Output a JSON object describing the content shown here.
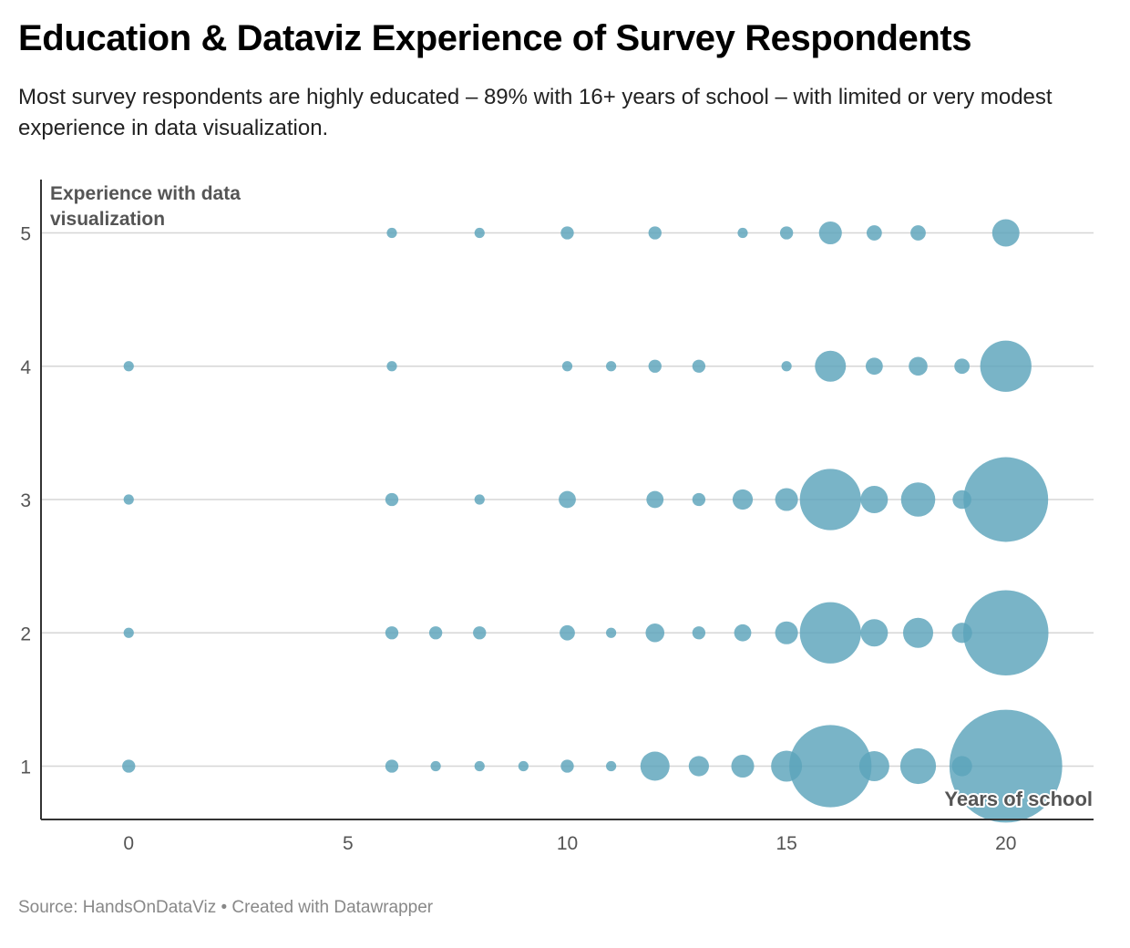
{
  "header": {
    "title": "Education & Dataviz Experience of Survey Respondents",
    "subtitle": "Most survey respondents are highly educated – 89% with 16+ years of school – with limited or very modest experience in data visualization."
  },
  "footer": {
    "source": "Source: HandsOnDataViz • Created with Datawrapper"
  },
  "chart_data": {
    "type": "scatter",
    "variant": "bubble",
    "title": "Education & Dataviz Experience of Survey Respondents",
    "xlabel": "Years of school",
    "ylabel_lines": [
      "Experience with data",
      "visualization"
    ],
    "xlim": [
      -2,
      22
    ],
    "ylim": [
      0.6,
      5.4
    ],
    "xticks": [
      "0",
      "5",
      "10",
      "15",
      "20"
    ],
    "yticks": [
      "1",
      "2",
      "3",
      "4",
      "5"
    ],
    "grid": true,
    "bubble_color": "#5ba3bb",
    "bubble_opacity": 0.82,
    "size_encoding": "relative count of respondents (estimated)",
    "points": [
      {
        "x": 6,
        "y": 5,
        "size": 1
      },
      {
        "x": 8,
        "y": 5,
        "size": 1
      },
      {
        "x": 10,
        "y": 5,
        "size": 2
      },
      {
        "x": 12,
        "y": 5,
        "size": 2
      },
      {
        "x": 14,
        "y": 5,
        "size": 1
      },
      {
        "x": 15,
        "y": 5,
        "size": 2
      },
      {
        "x": 16,
        "y": 5,
        "size": 8
      },
      {
        "x": 17,
        "y": 5,
        "size": 3
      },
      {
        "x": 18,
        "y": 5,
        "size": 3
      },
      {
        "x": 20,
        "y": 5,
        "size": 12
      },
      {
        "x": 0,
        "y": 4,
        "size": 1
      },
      {
        "x": 6,
        "y": 4,
        "size": 1
      },
      {
        "x": 10,
        "y": 4,
        "size": 1
      },
      {
        "x": 11,
        "y": 4,
        "size": 1
      },
      {
        "x": 12,
        "y": 4,
        "size": 2
      },
      {
        "x": 13,
        "y": 4,
        "size": 2
      },
      {
        "x": 15,
        "y": 4,
        "size": 1
      },
      {
        "x": 16,
        "y": 4,
        "size": 16
      },
      {
        "x": 17,
        "y": 4,
        "size": 4
      },
      {
        "x": 18,
        "y": 4,
        "size": 5
      },
      {
        "x": 19,
        "y": 4,
        "size": 3
      },
      {
        "x": 20,
        "y": 4,
        "size": 48
      },
      {
        "x": 0,
        "y": 3,
        "size": 1
      },
      {
        "x": 6,
        "y": 3,
        "size": 2
      },
      {
        "x": 8,
        "y": 3,
        "size": 1
      },
      {
        "x": 10,
        "y": 3,
        "size": 4
      },
      {
        "x": 12,
        "y": 3,
        "size": 4
      },
      {
        "x": 13,
        "y": 3,
        "size": 2
      },
      {
        "x": 14,
        "y": 3,
        "size": 6
      },
      {
        "x": 15,
        "y": 3,
        "size": 8
      },
      {
        "x": 16,
        "y": 3,
        "size": 70
      },
      {
        "x": 17,
        "y": 3,
        "size": 12
      },
      {
        "x": 18,
        "y": 3,
        "size": 20
      },
      {
        "x": 19,
        "y": 3,
        "size": 5
      },
      {
        "x": 20,
        "y": 3,
        "size": 138
      },
      {
        "x": 0,
        "y": 2,
        "size": 1
      },
      {
        "x": 6,
        "y": 2,
        "size": 2
      },
      {
        "x": 7,
        "y": 2,
        "size": 2
      },
      {
        "x": 8,
        "y": 2,
        "size": 2
      },
      {
        "x": 10,
        "y": 2,
        "size": 3
      },
      {
        "x": 11,
        "y": 2,
        "size": 1
      },
      {
        "x": 12,
        "y": 2,
        "size": 5
      },
      {
        "x": 13,
        "y": 2,
        "size": 2
      },
      {
        "x": 14,
        "y": 2,
        "size": 4
      },
      {
        "x": 15,
        "y": 2,
        "size": 8
      },
      {
        "x": 16,
        "y": 2,
        "size": 70
      },
      {
        "x": 17,
        "y": 2,
        "size": 12
      },
      {
        "x": 18,
        "y": 2,
        "size": 15
      },
      {
        "x": 19,
        "y": 2,
        "size": 6
      },
      {
        "x": 20,
        "y": 2,
        "size": 140
      },
      {
        "x": 0,
        "y": 1,
        "size": 2
      },
      {
        "x": 6,
        "y": 1,
        "size": 2
      },
      {
        "x": 7,
        "y": 1,
        "size": 1
      },
      {
        "x": 8,
        "y": 1,
        "size": 1
      },
      {
        "x": 9,
        "y": 1,
        "size": 1
      },
      {
        "x": 10,
        "y": 1,
        "size": 2
      },
      {
        "x": 11,
        "y": 1,
        "size": 1
      },
      {
        "x": 12,
        "y": 1,
        "size": 14
      },
      {
        "x": 13,
        "y": 1,
        "size": 6
      },
      {
        "x": 14,
        "y": 1,
        "size": 8
      },
      {
        "x": 15,
        "y": 1,
        "size": 16
      },
      {
        "x": 16,
        "y": 1,
        "size": 130
      },
      {
        "x": 17,
        "y": 1,
        "size": 15
      },
      {
        "x": 18,
        "y": 1,
        "size": 22
      },
      {
        "x": 19,
        "y": 1,
        "size": 6
      },
      {
        "x": 20,
        "y": 1,
        "size": 250
      }
    ]
  }
}
